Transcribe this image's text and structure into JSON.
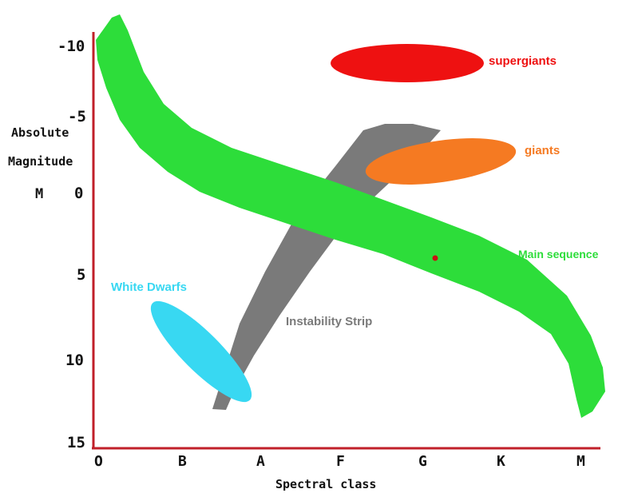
{
  "axes": {
    "y_title_line1": "Absolute",
    "y_title_line2": "Magnitude",
    "y_title_line3": "M",
    "x_title": "Spectral class",
    "y_ticks": [
      "-10",
      "-5",
      "0",
      "5",
      "10",
      "15"
    ],
    "x_ticks": [
      "O",
      "B",
      "A",
      "F",
      "G",
      "K",
      "M"
    ]
  },
  "regions": {
    "supergiants": "supergiants",
    "giants": "giants",
    "main_sequence": "Main sequence",
    "white_dwarfs": "White Dwarfs",
    "instability_strip": "Instability Strip"
  },
  "colors": {
    "axis": "#c0202a",
    "main_sequence": "#2ddd3a",
    "supergiants": "#ee1111",
    "giants": "#f57a22",
    "white_dwarfs": "#38d8f2",
    "instability_strip": "#7a7a7a",
    "sun_marker": "#cc1111"
  }
}
